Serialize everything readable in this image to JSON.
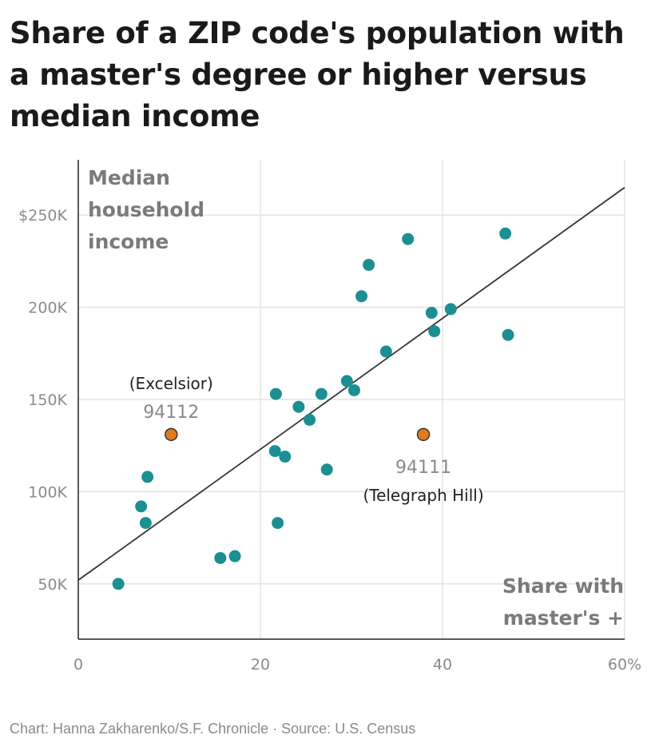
{
  "title": "Share of a ZIP code's population with a master's degree or higher versus median income",
  "credit": "Chart: Hanna Zakharenko/S.F. Chronicle · Source: U.S. Census",
  "chart_data": {
    "type": "scatter",
    "title": "Share of a ZIP code's population with a master's degree or higher versus median income",
    "xlabel": "Share with master's +",
    "ylabel": "Median household income",
    "xlim": [
      0,
      60
    ],
    "ylim": [
      20000,
      280000
    ],
    "x_ticks": [
      0,
      20,
      40,
      60
    ],
    "x_tick_labels": [
      "0",
      "20",
      "40",
      "60%"
    ],
    "y_ticks": [
      50000,
      100000,
      150000,
      200000,
      250000
    ],
    "y_tick_labels": [
      "50K",
      "100K",
      "150K",
      "200K",
      "$250K"
    ],
    "grid": true,
    "colors": {
      "point": "#1b8f91",
      "highlight": "#e07b20",
      "trend": "#333333"
    },
    "trendline": {
      "x": [
        0,
        60
      ],
      "y": [
        52000,
        265000
      ]
    },
    "points": [
      {
        "x": 4.4,
        "y": 50000
      },
      {
        "x": 6.9,
        "y": 92000
      },
      {
        "x": 7.4,
        "y": 83000
      },
      {
        "x": 7.6,
        "y": 108000
      },
      {
        "x": 15.6,
        "y": 64000
      },
      {
        "x": 17.2,
        "y": 65000
      },
      {
        "x": 21.6,
        "y": 122000
      },
      {
        "x": 21.7,
        "y": 153000
      },
      {
        "x": 21.9,
        "y": 83000
      },
      {
        "x": 22.7,
        "y": 119000
      },
      {
        "x": 24.2,
        "y": 146000
      },
      {
        "x": 25.4,
        "y": 139000
      },
      {
        "x": 26.7,
        "y": 153000
      },
      {
        "x": 27.3,
        "y": 112000
      },
      {
        "x": 29.5,
        "y": 160000
      },
      {
        "x": 30.3,
        "y": 155000
      },
      {
        "x": 31.1,
        "y": 206000
      },
      {
        "x": 31.9,
        "y": 223000
      },
      {
        "x": 33.8,
        "y": 176000
      },
      {
        "x": 36.2,
        "y": 237000
      },
      {
        "x": 38.8,
        "y": 197000
      },
      {
        "x": 39.1,
        "y": 187000
      },
      {
        "x": 40.9,
        "y": 199000
      },
      {
        "x": 46.9,
        "y": 240000
      },
      {
        "x": 47.2,
        "y": 185000
      }
    ],
    "highlights": [
      {
        "x": 10.2,
        "y": 131000,
        "zip": "94112",
        "name": "(Excelsior)",
        "label_position": "above"
      },
      {
        "x": 37.9,
        "y": 131000,
        "zip": "94111",
        "name": "(Telegraph Hill)",
        "label_position": "below"
      }
    ]
  }
}
